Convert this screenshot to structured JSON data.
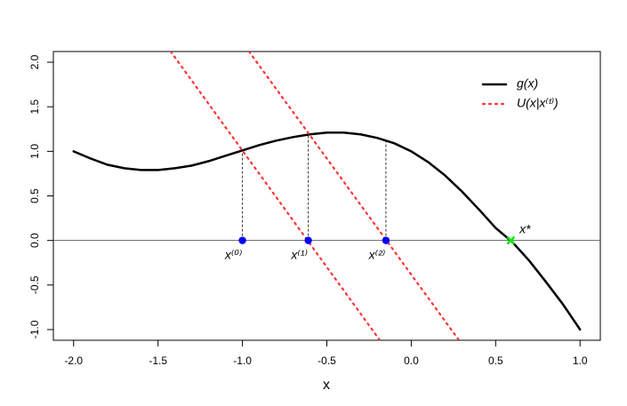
{
  "chart_data": {
    "type": "line",
    "xlabel": "x",
    "xlim": [
      -2.12,
      1.12
    ],
    "ylim": [
      -1.12,
      2.12
    ],
    "xticks": [
      {
        "value": -2,
        "label": "-2.0"
      },
      {
        "value": -1.5,
        "label": "-1.5"
      },
      {
        "value": -1,
        "label": "-1.0"
      },
      {
        "value": -0.5,
        "label": "-0.5"
      },
      {
        "value": 0,
        "label": "0.0"
      },
      {
        "value": 0.5,
        "label": "0.5"
      },
      {
        "value": 1,
        "label": "1.0"
      }
    ],
    "yticks": [
      {
        "value": -1,
        "label": "-1.0"
      },
      {
        "value": -0.5,
        "label": "-0.5"
      },
      {
        "value": 0,
        "label": "0.0"
      },
      {
        "value": 0.5,
        "label": "0.5"
      },
      {
        "value": 1,
        "label": "1.0"
      },
      {
        "value": 1.5,
        "label": "1.5"
      },
      {
        "value": 2,
        "label": "2.0"
      }
    ],
    "hline": 0,
    "legend": "top-right",
    "series": [
      {
        "name": "g(x)",
        "color": "#000000",
        "style": "solid",
        "x": [
          -2,
          -1.9,
          -1.8,
          -1.7,
          -1.6,
          -1.5,
          -1.4,
          -1.3,
          -1.2,
          -1.1,
          -1,
          -0.9,
          -0.8,
          -0.7,
          -0.6,
          -0.5,
          -0.4,
          -0.3,
          -0.2,
          -0.1,
          0,
          0.1,
          0.2,
          0.3,
          0.4,
          0.5,
          0.6,
          0.7,
          0.8,
          0.9,
          1
        ],
        "values": [
          1,
          0.92,
          0.85,
          0.81,
          0.79,
          0.79,
          0.81,
          0.84,
          0.89,
          0.95,
          1.01,
          1.07,
          1.12,
          1.16,
          1.19,
          1.21,
          1.21,
          1.19,
          1.15,
          1.09,
          1,
          0.88,
          0.73,
          0.55,
          0.35,
          0.14,
          -0.02,
          -0.23,
          -0.47,
          -0.72,
          -1
        ]
      },
      {
        "name": "U(x|x⁽ᵗ⁾)",
        "color": "#ff3333",
        "style": "dotted",
        "x": [
          -1.425,
          -0.186,
          null,
          -0.961,
          0.283
        ],
        "values": [
          2.12,
          -1.12,
          null,
          2.12,
          -1.12
        ]
      }
    ],
    "points": [
      {
        "label": "x⁽⁰⁾",
        "x": -1,
        "y": 0,
        "curve_value": 1.01,
        "color": "#0000ff",
        "marker": "dot"
      },
      {
        "label": "x⁽¹⁾",
        "x": -0.61,
        "y": 0,
        "curve_value": 1.19,
        "color": "#0000ff",
        "marker": "dot"
      },
      {
        "label": "x⁽²⁾",
        "x": -0.15,
        "y": 0,
        "curve_value": 1.11,
        "color": "#0000ff",
        "marker": "dot"
      },
      {
        "label": "x*",
        "x": 0.59,
        "y": 0,
        "color": "#00ee00",
        "marker": "cross"
      }
    ]
  }
}
